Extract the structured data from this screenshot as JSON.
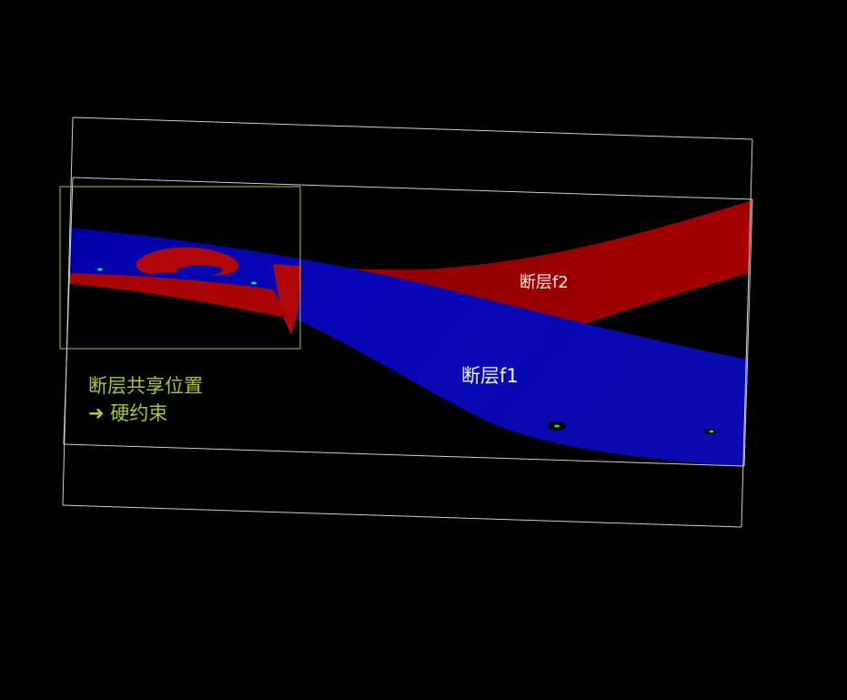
{
  "labels": {
    "fault_f2": "断层f2",
    "fault_f1": "断层f1"
  },
  "annotation": {
    "line1": "断层共享位置",
    "arrow": "➜",
    "line2": "硬约束"
  },
  "colors": {
    "background": "#000000",
    "fault_f1": "#0a0ab4",
    "fault_f2": "#a00000",
    "bounding_box": "#cfcfcf",
    "highlight_box": "#a6c63a",
    "annotation_text": "#a6c63a",
    "label_text": "#f4f4f4",
    "marker": "#22dd88"
  }
}
